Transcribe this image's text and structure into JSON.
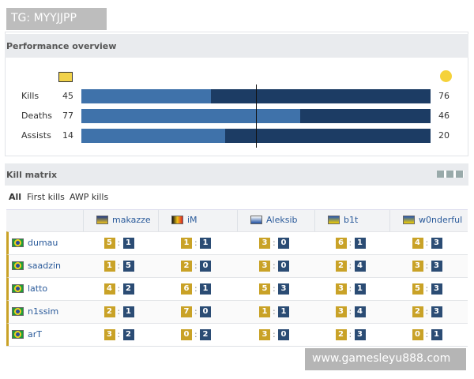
{
  "watermark": "TG: MYYJJPP",
  "performance": {
    "title": "Performance overview",
    "rows": [
      {
        "label": "Kills",
        "left": 45,
        "right": 76
      },
      {
        "label": "Deaths",
        "left": 77,
        "right": 46
      },
      {
        "label": "Assists",
        "left": 14,
        "right": 20
      }
    ]
  },
  "matrix": {
    "title": "Kill matrix",
    "tabs": [
      "All",
      "First kills",
      "AWP kills"
    ],
    "separator": ":",
    "columns": [
      "makazze",
      "iM",
      "Aleksib",
      "b1t",
      "w0nderful"
    ],
    "rows": [
      {
        "player": "dumau",
        "cells": [
          [
            5,
            1
          ],
          [
            1,
            1
          ],
          [
            3,
            0
          ],
          [
            6,
            1
          ],
          [
            4,
            3
          ]
        ]
      },
      {
        "player": "saadzin",
        "cells": [
          [
            1,
            5
          ],
          [
            2,
            0
          ],
          [
            3,
            0
          ],
          [
            2,
            4
          ],
          [
            3,
            3
          ]
        ]
      },
      {
        "player": "latto",
        "cells": [
          [
            4,
            2
          ],
          [
            6,
            1
          ],
          [
            5,
            3
          ],
          [
            3,
            1
          ],
          [
            5,
            3
          ]
        ]
      },
      {
        "player": "n1ssim",
        "cells": [
          [
            2,
            1
          ],
          [
            7,
            0
          ],
          [
            1,
            1
          ],
          [
            3,
            4
          ],
          [
            2,
            3
          ]
        ]
      },
      {
        "player": "arT",
        "cells": [
          [
            3,
            2
          ],
          [
            0,
            2
          ],
          [
            3,
            0
          ],
          [
            2,
            3
          ],
          [
            0,
            1
          ]
        ]
      }
    ]
  },
  "footer": "www.gamesleyu888.com"
}
